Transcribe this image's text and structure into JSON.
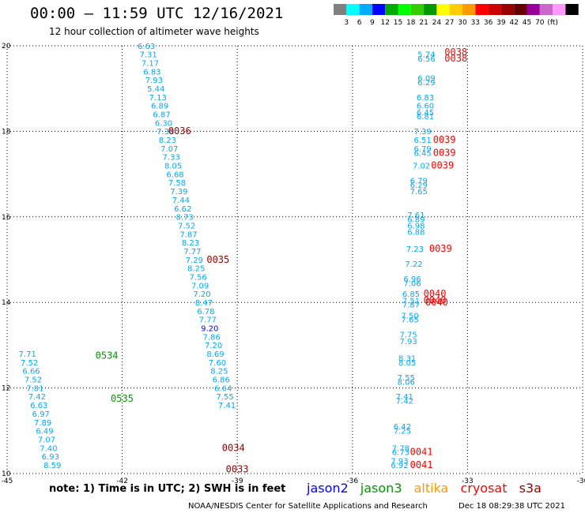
{
  "header": {
    "title": "00:00 – 11:59 UTC 12/16/2021",
    "subtitle": "12 hour collection of altimeter wave heights"
  },
  "legend": {
    "colors": [
      "#808080",
      "#00ffff",
      "#00aaff",
      "#0000ff",
      "#00aa00",
      "#00ff00",
      "#33cc00",
      "#009900",
      "#ffff00",
      "#ffcc00",
      "#ff9900",
      "#ff0000",
      "#cc0000",
      "#990000",
      "#660000",
      "#990099",
      "#cc66cc",
      "#ff99ff",
      "#000000"
    ],
    "labels": [
      "3",
      "6",
      "9",
      "12",
      "15",
      "18",
      "21",
      "24",
      "27",
      "30",
      "33",
      "36",
      "39",
      "42",
      "45",
      "70",
      "(ft)"
    ]
  },
  "note": "note:  1) Time is in UTC;  2) SWH is in feet",
  "satellites": [
    {
      "name": "jason2",
      "color": "#0000ff"
    },
    {
      "name": "jason3",
      "color": "#009900"
    },
    {
      "name": "altika",
      "color": "#ff9900"
    },
    {
      "name": "cryosat",
      "color": "#ff0000"
    },
    {
      "name": "s3a",
      "color": "#990000"
    }
  ],
  "footer": {
    "credit": "NOAA/NESDIS Center for Satellite Applications and Research",
    "timestamp": "Dec 18 08:29:38 UTC 2021"
  },
  "chart_data": {
    "type": "scatter",
    "xlim": [
      -45,
      -30
    ],
    "ylim": [
      10,
      20
    ],
    "x_ticks": [
      "-45",
      "-42",
      "-39",
      "-36",
      "-33",
      "-30"
    ],
    "y_ticks": [
      "10",
      "12",
      "14",
      "16",
      "18",
      "20"
    ],
    "grid": true,
    "points": [
      {
        "x": -41.6,
        "y": 19.93,
        "label": "6.63",
        "color": "#00aaff"
      },
      {
        "x": -41.55,
        "y": 19.73,
        "label": "7.31",
        "color": "#00aaff"
      },
      {
        "x": -41.5,
        "y": 19.53,
        "label": "7.17",
        "color": "#00aaff"
      },
      {
        "x": -41.45,
        "y": 19.33,
        "label": "6.83",
        "color": "#00aaff"
      },
      {
        "x": -41.4,
        "y": 19.13,
        "label": "7.93",
        "color": "#00aaff"
      },
      {
        "x": -41.35,
        "y": 18.93,
        "label": "5.44",
        "color": "#00aaff"
      },
      {
        "x": -41.3,
        "y": 18.73,
        "label": "7.13",
        "color": "#00aaff"
      },
      {
        "x": -41.25,
        "y": 18.53,
        "label": "6.89",
        "color": "#00aaff"
      },
      {
        "x": -41.2,
        "y": 18.33,
        "label": "6.87",
        "color": "#00aaff"
      },
      {
        "x": -41.15,
        "y": 18.13,
        "label": "6.30",
        "color": "#00aaff"
      },
      {
        "x": -41.1,
        "y": 17.93,
        "label": "7.38",
        "color": "#00aaff"
      },
      {
        "x": -41.05,
        "y": 17.73,
        "label": "8.23",
        "color": "#00aaff"
      },
      {
        "x": -41.0,
        "y": 17.53,
        "label": "7.07",
        "color": "#00aaff"
      },
      {
        "x": -40.95,
        "y": 17.33,
        "label": "7.33",
        "color": "#00aaff"
      },
      {
        "x": -40.9,
        "y": 17.13,
        "label": "8.05",
        "color": "#00aaff"
      },
      {
        "x": -40.85,
        "y": 16.93,
        "label": "6.68",
        "color": "#00aaff"
      },
      {
        "x": -40.8,
        "y": 16.73,
        "label": "7.58",
        "color": "#00aaff"
      },
      {
        "x": -40.75,
        "y": 16.53,
        "label": "7.39",
        "color": "#00aaff"
      },
      {
        "x": -40.7,
        "y": 16.33,
        "label": "7.44",
        "color": "#00aaff"
      },
      {
        "x": -40.65,
        "y": 16.13,
        "label": "6.62",
        "color": "#00aaff"
      },
      {
        "x": -40.6,
        "y": 15.93,
        "label": "8.73",
        "color": "#00aaff"
      },
      {
        "x": -40.55,
        "y": 15.73,
        "label": "7.52",
        "color": "#00aaff"
      },
      {
        "x": -40.5,
        "y": 15.53,
        "label": "7.87",
        "color": "#00aaff"
      },
      {
        "x": -40.45,
        "y": 15.33,
        "label": "8.23",
        "color": "#00aaff"
      },
      {
        "x": -40.4,
        "y": 15.13,
        "label": "7.77",
        "color": "#00aaff"
      },
      {
        "x": -40.35,
        "y": 14.93,
        "label": "7.29",
        "color": "#00aaff"
      },
      {
        "x": -40.3,
        "y": 14.73,
        "label": "8.25",
        "color": "#00aaff"
      },
      {
        "x": -40.25,
        "y": 14.53,
        "label": "7.56",
        "color": "#00aaff"
      },
      {
        "x": -40.2,
        "y": 14.33,
        "label": "7.09",
        "color": "#00aaff"
      },
      {
        "x": -40.15,
        "y": 14.13,
        "label": "7.20",
        "color": "#00aaff"
      },
      {
        "x": -40.1,
        "y": 13.93,
        "label": "8.47",
        "color": "#00aaff"
      },
      {
        "x": -40.05,
        "y": 13.73,
        "label": "6.78",
        "color": "#00aaff"
      },
      {
        "x": -40.0,
        "y": 13.53,
        "label": "7.77",
        "color": "#00aaff"
      },
      {
        "x": -39.95,
        "y": 13.33,
        "label": "9.20",
        "color": "#0000ff"
      },
      {
        "x": -39.9,
        "y": 13.13,
        "label": "7.86",
        "color": "#00aaff"
      },
      {
        "x": -39.85,
        "y": 12.93,
        "label": "7.20",
        "color": "#00aaff"
      },
      {
        "x": -39.8,
        "y": 12.73,
        "label": "8.69",
        "color": "#00aaff"
      },
      {
        "x": -39.75,
        "y": 12.53,
        "label": "7.60",
        "color": "#00aaff"
      },
      {
        "x": -39.7,
        "y": 12.33,
        "label": "8.25",
        "color": "#00aaff"
      },
      {
        "x": -39.65,
        "y": 12.13,
        "label": "6.86",
        "color": "#00aaff"
      },
      {
        "x": -39.6,
        "y": 11.93,
        "label": "6.64",
        "color": "#00aaff"
      },
      {
        "x": -39.55,
        "y": 11.73,
        "label": "7.55",
        "color": "#00aaff"
      },
      {
        "x": -39.5,
        "y": 11.53,
        "label": "7.41",
        "color": "#00aaff"
      },
      {
        "x": -44.7,
        "y": 12.73,
        "label": "7.71",
        "color": "#00aaff"
      },
      {
        "x": -44.65,
        "y": 12.53,
        "label": "7.52",
        "color": "#00aaff"
      },
      {
        "x": -44.6,
        "y": 12.33,
        "label": "6.66",
        "color": "#00aaff"
      },
      {
        "x": -44.55,
        "y": 12.13,
        "label": "7.52",
        "color": "#00aaff"
      },
      {
        "x": -44.5,
        "y": 11.93,
        "label": "7.81",
        "color": "#00aaff"
      },
      {
        "x": -44.45,
        "y": 11.73,
        "label": "7.42",
        "color": "#00aaff"
      },
      {
        "x": -44.4,
        "y": 11.53,
        "label": "6.63",
        "color": "#00aaff"
      },
      {
        "x": -44.35,
        "y": 11.33,
        "label": "6.97",
        "color": "#00aaff"
      },
      {
        "x": -44.3,
        "y": 11.13,
        "label": "7.89",
        "color": "#00aaff"
      },
      {
        "x": -44.25,
        "y": 10.93,
        "label": "6.49",
        "color": "#00aaff"
      },
      {
        "x": -44.2,
        "y": 10.73,
        "label": "7.07",
        "color": "#00aaff"
      },
      {
        "x": -44.15,
        "y": 10.53,
        "label": "7.40",
        "color": "#00aaff"
      },
      {
        "x": -44.1,
        "y": 10.33,
        "label": "6.93",
        "color": "#00aaff"
      },
      {
        "x": -44.05,
        "y": 10.13,
        "label": "8.59",
        "color": "#00aaff"
      },
      {
        "x": -34.3,
        "y": 19.73,
        "label": "5.74",
        "color": "#00aaff"
      },
      {
        "x": -34.3,
        "y": 19.63,
        "label": "6.56",
        "color": "#00aaff"
      },
      {
        "x": -34.3,
        "y": 19.18,
        "label": "6.09",
        "color": "#00aaff"
      },
      {
        "x": -34.3,
        "y": 19.08,
        "label": "6.29",
        "color": "#00aaff"
      },
      {
        "x": -34.33,
        "y": 18.73,
        "label": "6.83",
        "color": "#00aaff"
      },
      {
        "x": -34.33,
        "y": 18.53,
        "label": "6.60",
        "color": "#00aaff"
      },
      {
        "x": -34.33,
        "y": 18.38,
        "label": "6.45",
        "color": "#00aaff"
      },
      {
        "x": -34.33,
        "y": 18.28,
        "label": "6.81",
        "color": "#00aaff"
      },
      {
        "x": -34.4,
        "y": 17.93,
        "label": "7.39",
        "color": "#00aaff"
      },
      {
        "x": -34.4,
        "y": 17.73,
        "label": "6.51",
        "color": "#00aaff"
      },
      {
        "x": -34.4,
        "y": 17.53,
        "label": "6.79",
        "color": "#00aaff"
      },
      {
        "x": -34.4,
        "y": 17.43,
        "label": "6.45",
        "color": "#00aaff"
      },
      {
        "x": -34.43,
        "y": 17.13,
        "label": "7.02",
        "color": "#00aaff"
      },
      {
        "x": -34.5,
        "y": 16.78,
        "label": "6.79",
        "color": "#00aaff"
      },
      {
        "x": -34.5,
        "y": 16.68,
        "label": "6.29",
        "color": "#00aaff"
      },
      {
        "x": -34.5,
        "y": 16.53,
        "label": "7.65",
        "color": "#00aaff"
      },
      {
        "x": -34.57,
        "y": 15.98,
        "label": "7.61",
        "color": "#00aaff"
      },
      {
        "x": -34.57,
        "y": 15.88,
        "label": "6.89",
        "color": "#00aaff"
      },
      {
        "x": -34.57,
        "y": 15.73,
        "label": "6.98",
        "color": "#00aaff"
      },
      {
        "x": -34.57,
        "y": 15.58,
        "label": "6.88",
        "color": "#00aaff"
      },
      {
        "x": -34.6,
        "y": 15.18,
        "label": "7.23",
        "color": "#00aaff"
      },
      {
        "x": -34.63,
        "y": 14.83,
        "label": "7.22",
        "color": "#00aaff"
      },
      {
        "x": -34.67,
        "y": 14.48,
        "label": "6.96",
        "color": "#00aaff"
      },
      {
        "x": -34.67,
        "y": 14.38,
        "label": "7.06",
        "color": "#00aaff"
      },
      {
        "x": -34.7,
        "y": 14.13,
        "label": "6.85",
        "color": "#00aaff"
      },
      {
        "x": -34.7,
        "y": 13.98,
        "label": "7.51",
        "color": "#00aaff"
      },
      {
        "x": -34.7,
        "y": 13.88,
        "label": "7.87",
        "color": "#00aaff"
      },
      {
        "x": -34.73,
        "y": 13.63,
        "label": "7.50",
        "color": "#00aaff"
      },
      {
        "x": -34.73,
        "y": 13.53,
        "label": "7.65",
        "color": "#00aaff"
      },
      {
        "x": -34.77,
        "y": 13.18,
        "label": "7.75",
        "color": "#00aaff"
      },
      {
        "x": -34.77,
        "y": 13.03,
        "label": "7.93",
        "color": "#00aaff"
      },
      {
        "x": -34.8,
        "y": 12.63,
        "label": "8.31",
        "color": "#00aaff"
      },
      {
        "x": -34.8,
        "y": 12.53,
        "label": "8.05",
        "color": "#00aaff"
      },
      {
        "x": -34.83,
        "y": 12.18,
        "label": "7.55",
        "color": "#00aaff"
      },
      {
        "x": -34.83,
        "y": 12.08,
        "label": "8.06",
        "color": "#00aaff"
      },
      {
        "x": -34.87,
        "y": 11.73,
        "label": "7.41",
        "color": "#00aaff"
      },
      {
        "x": -34.87,
        "y": 11.63,
        "label": "7.42",
        "color": "#00aaff"
      },
      {
        "x": -34.93,
        "y": 11.03,
        "label": "6.42",
        "color": "#00aaff"
      },
      {
        "x": -34.93,
        "y": 10.93,
        "label": "7.25",
        "color": "#00aaff"
      },
      {
        "x": -34.97,
        "y": 10.53,
        "label": "7.78",
        "color": "#00aaff"
      },
      {
        "x": -34.97,
        "y": 10.43,
        "label": "6.73",
        "color": "#00aaff"
      },
      {
        "x": -35.0,
        "y": 10.23,
        "label": "7.93",
        "color": "#00aaff"
      },
      {
        "x": -35.0,
        "y": 10.13,
        "label": "6.92",
        "color": "#00aaff"
      }
    ],
    "time_labels": [
      {
        "x": -42.7,
        "y": 12.68,
        "label": "0534",
        "color": "#009900"
      },
      {
        "x": -42.3,
        "y": 11.68,
        "label": "0535",
        "color": "#009900"
      },
      {
        "x": -40.8,
        "y": 17.93,
        "label": "0036",
        "color": "#990000"
      },
      {
        "x": -39.8,
        "y": 14.93,
        "label": "0035",
        "color": "#990000"
      },
      {
        "x": -39.4,
        "y": 10.53,
        "label": "0034",
        "color": "#990000"
      },
      {
        "x": -39.3,
        "y": 10.03,
        "label": "0033",
        "color": "#990000"
      },
      {
        "x": -33.6,
        "y": 19.78,
        "label": "0038",
        "color": "#ff0000"
      },
      {
        "x": -33.6,
        "y": 19.63,
        "label": "0038",
        "color": "#ff0000"
      },
      {
        "x": -33.9,
        "y": 17.73,
        "label": "0039",
        "color": "#ff0000"
      },
      {
        "x": -33.9,
        "y": 17.43,
        "label": "0039",
        "color": "#ff0000"
      },
      {
        "x": -33.95,
        "y": 17.13,
        "label": "0039",
        "color": "#ff0000"
      },
      {
        "x": -34.0,
        "y": 15.18,
        "label": "0039",
        "color": "#ff0000"
      },
      {
        "x": -34.15,
        "y": 14.13,
        "label": "0040",
        "color": "#ff0000"
      },
      {
        "x": -34.15,
        "y": 13.98,
        "label": "0040",
        "color": "#ff0000"
      },
      {
        "x": -34.1,
        "y": 13.93,
        "label": "0040",
        "color": "#ff0000"
      },
      {
        "x": -34.5,
        "y": 10.43,
        "label": "0041",
        "color": "#ff0000"
      },
      {
        "x": -34.5,
        "y": 10.13,
        "label": "0041",
        "color": "#ff0000"
      }
    ]
  }
}
